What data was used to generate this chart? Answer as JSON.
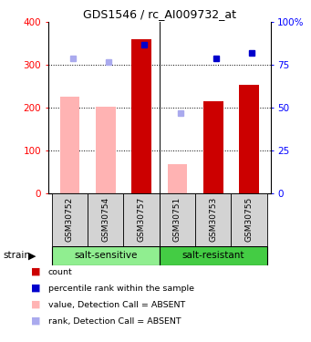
{
  "title": "GDS1546 / rc_AI009732_at",
  "samples": [
    "GSM30752",
    "GSM30754",
    "GSM30757",
    "GSM30751",
    "GSM30753",
    "GSM30755"
  ],
  "count_values": [
    null,
    null,
    360,
    null,
    215,
    253
  ],
  "count_absent_values": [
    225,
    203,
    null,
    67,
    null,
    null
  ],
  "rank_values": [
    null,
    null,
    87,
    null,
    79,
    82
  ],
  "rank_absent_values": [
    79,
    77,
    null,
    47,
    null,
    null
  ],
  "color_bar_present": "#cc0000",
  "color_bar_absent": "#ffb3b3",
  "color_rank_present": "#0000cc",
  "color_rank_absent": "#aaaaee",
  "group_color_sensitive": "#90ee90",
  "group_color_resistant": "#44cc44",
  "yticks": [
    0,
    100,
    200,
    300,
    400
  ],
  "y2ticks": [
    0,
    25,
    50,
    75,
    100
  ],
  "grid_values": [
    100,
    200,
    300
  ],
  "legend_colors": [
    "#cc0000",
    "#0000cc",
    "#ffb3b3",
    "#aaaaee"
  ],
  "legend_labels": [
    "count",
    "percentile rank within the sample",
    "value, Detection Call = ABSENT",
    "rank, Detection Call = ABSENT"
  ]
}
